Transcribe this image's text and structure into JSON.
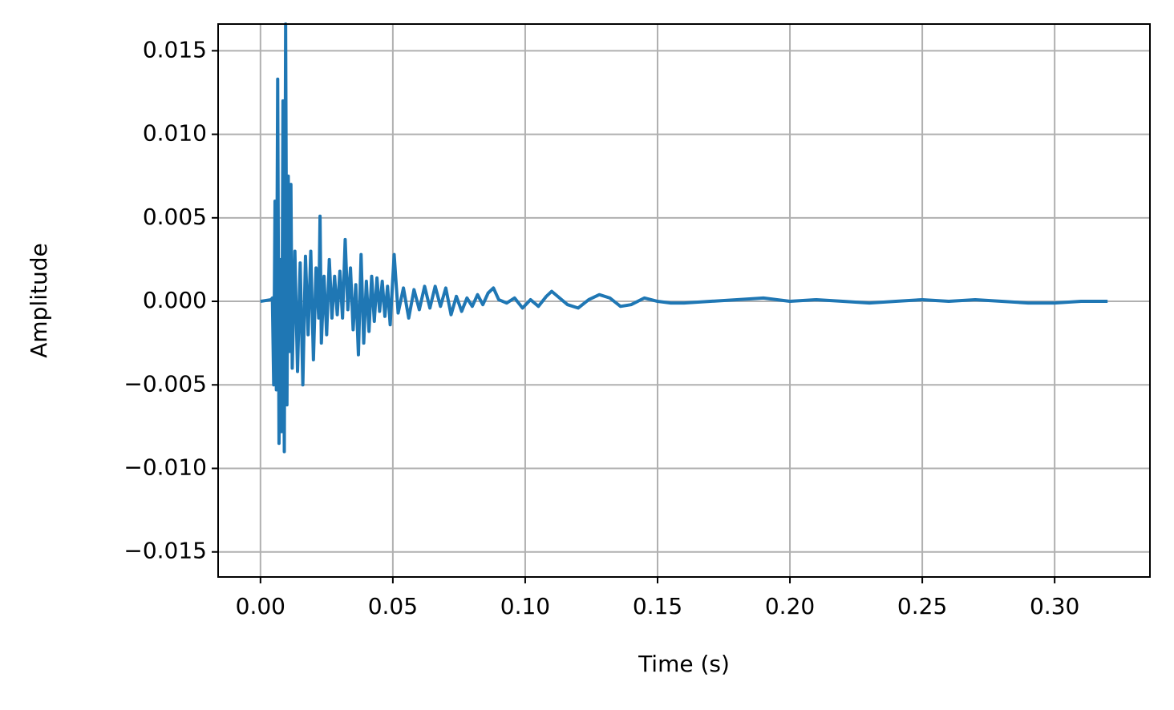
{
  "chart_data": {
    "type": "line",
    "xlabel": "Time (s)",
    "ylabel": "Amplitude",
    "color": "#1f77b4",
    "grid": true,
    "xlim": [
      -0.016,
      0.336
    ],
    "ylim": [
      -0.0165,
      0.0166
    ],
    "xticks": [
      {
        "value": 0,
        "label": "0.00"
      },
      {
        "value": 0.05,
        "label": "0.05"
      },
      {
        "value": 0.1,
        "label": "0.10"
      },
      {
        "value": 0.15,
        "label": "0.15"
      },
      {
        "value": 0.2,
        "label": "0.20"
      },
      {
        "value": 0.25,
        "label": "0.25"
      },
      {
        "value": 0.3,
        "label": "0.30"
      }
    ],
    "yticks": [
      {
        "value": -0.015,
        "label": "−0.015"
      },
      {
        "value": -0.01,
        "label": "−0.010"
      },
      {
        "value": -0.005,
        "label": "−0.005"
      },
      {
        "value": 0,
        "label": "0.000"
      },
      {
        "value": 0.005,
        "label": "0.005"
      },
      {
        "value": 0.01,
        "label": "0.010"
      },
      {
        "value": 0.015,
        "label": "0.015"
      }
    ],
    "x": [
      0,
      0.004,
      0.0045,
      0.005,
      0.0055,
      0.006,
      0.0065,
      0.007,
      0.0075,
      0.008,
      0.0085,
      0.009,
      0.0095,
      0.01,
      0.0105,
      0.011,
      0.0115,
      0.012,
      0.013,
      0.014,
      0.015,
      0.016,
      0.017,
      0.018,
      0.019,
      0.02,
      0.021,
      0.022,
      0.0225,
      0.023,
      0.024,
      0.025,
      0.026,
      0.027,
      0.028,
      0.029,
      0.03,
      0.031,
      0.032,
      0.033,
      0.034,
      0.035,
      0.036,
      0.037,
      0.038,
      0.039,
      0.04,
      0.041,
      0.042,
      0.043,
      0.044,
      0.045,
      0.046,
      0.047,
      0.048,
      0.049,
      0.0505,
      0.052,
      0.054,
      0.056,
      0.058,
      0.06,
      0.062,
      0.064,
      0.066,
      0.068,
      0.07,
      0.072,
      0.074,
      0.076,
      0.078,
      0.08,
      0.082,
      0.084,
      0.086,
      0.088,
      0.09,
      0.093,
      0.096,
      0.099,
      0.102,
      0.105,
      0.108,
      0.11,
      0.113,
      0.116,
      0.12,
      0.124,
      0.128,
      0.132,
      0.136,
      0.14,
      0.145,
      0.15,
      0.155,
      0.16,
      0.17,
      0.18,
      0.19,
      0.2,
      0.21,
      0.22,
      0.23,
      0.24,
      0.25,
      0.26,
      0.27,
      0.28,
      0.29,
      0.3,
      0.31,
      0.32
    ],
    "values": [
      0,
      0.0001,
      0.0002,
      -0.005,
      0.006,
      -0.0053,
      0.0133,
      -0.0085,
      0.0025,
      -0.0078,
      0.012,
      -0.009,
      0.0166,
      -0.0062,
      0.0075,
      -0.003,
      0.007,
      -0.004,
      0.003,
      -0.0042,
      0.0023,
      -0.005,
      0.0027,
      -0.002,
      0.003,
      -0.0035,
      0.002,
      -0.001,
      0.0051,
      -0.0025,
      0.0015,
      -0.002,
      0.0025,
      -0.001,
      0.0015,
      -0.0008,
      0.0018,
      -0.001,
      0.0037,
      -0.0005,
      0.002,
      -0.0017,
      0.001,
      -0.0032,
      0.0028,
      -0.0025,
      0.0012,
      -0.0018,
      0.0015,
      -0.0012,
      0.0014,
      -0.0006,
      0.0012,
      -0.0009,
      0.0009,
      -0.0014,
      0.0028,
      -0.0007,
      0.0008,
      -0.001,
      0.0007,
      -0.0005,
      0.0009,
      -0.0004,
      0.0009,
      -0.0003,
      0.0008,
      -0.0008,
      0.0003,
      -0.0006,
      0.0002,
      -0.0003,
      0.0004,
      -0.0002,
      0.0005,
      0.0008,
      0.0001,
      -0.0001,
      0.0002,
      -0.0004,
      0.0001,
      -0.0003,
      0.0003,
      0.0006,
      0.0002,
      -0.0002,
      -0.0004,
      0.0001,
      0.0004,
      0.0002,
      -0.0003,
      -0.0002,
      0.0002,
      0,
      -0.0001,
      -0.0001,
      0,
      0.0001,
      0.0002,
      0,
      0.0001,
      0,
      -0.0001,
      0,
      0.0001,
      0,
      0.0001,
      0,
      -0.0001,
      -0.0001,
      0,
      0
    ]
  }
}
